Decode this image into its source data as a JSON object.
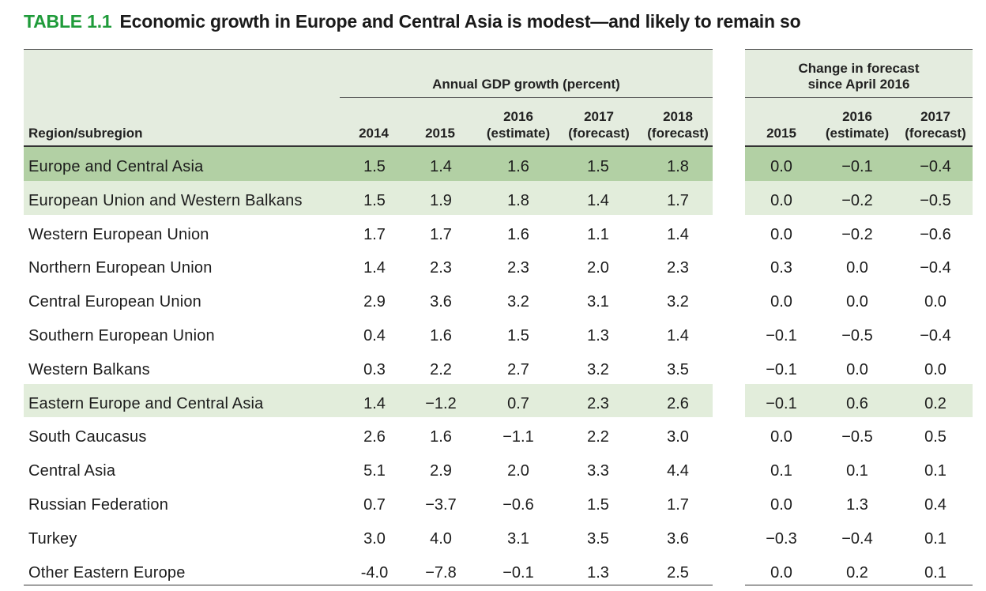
{
  "title": {
    "label": "TABLE 1.1",
    "text": "Economic growth in Europe and Central Asia is modest—and likely to remain so"
  },
  "header": {
    "region_label": "Region/subregion",
    "annual_group": "Annual GDP growth (percent)",
    "change_group_line1": "Change in forecast",
    "change_group_line2": "since April 2016",
    "annual_columns": [
      {
        "line1": "",
        "line2": "2014"
      },
      {
        "line1": "",
        "line2": "2015"
      },
      {
        "line1": "2016",
        "line2": "(estimate)"
      },
      {
        "line1": "2017",
        "line2": "(forecast)"
      },
      {
        "line1": "2018",
        "line2": "(forecast)"
      }
    ],
    "change_columns": [
      {
        "line1": "",
        "line2": "2015"
      },
      {
        "line1": "2016",
        "line2": "(estimate)"
      },
      {
        "line1": "2017",
        "line2": "(forecast)"
      }
    ]
  },
  "rows": [
    {
      "name": "Europe and Central Asia",
      "highlight": "dark",
      "values": [
        "1.5",
        "1.4",
        "1.6",
        "1.5",
        "1.8"
      ],
      "changes": [
        "0.0",
        "−0.1",
        "−0.4"
      ]
    },
    {
      "name": "European Union and Western Balkans",
      "highlight": "light",
      "values": [
        "1.5",
        "1.9",
        "1.8",
        "1.4",
        "1.7"
      ],
      "changes": [
        "0.0",
        "−0.2",
        "−0.5"
      ]
    },
    {
      "name": "Western European Union",
      "highlight": "none",
      "values": [
        "1.7",
        "1.7",
        "1.6",
        "1.1",
        "1.4"
      ],
      "changes": [
        "0.0",
        "−0.2",
        "−0.6"
      ]
    },
    {
      "name": "Northern European Union",
      "highlight": "none",
      "values": [
        "1.4",
        "2.3",
        "2.3",
        "2.0",
        "2.3"
      ],
      "changes": [
        "0.3",
        "0.0",
        "−0.4"
      ]
    },
    {
      "name": "Central European Union",
      "highlight": "none",
      "values": [
        "2.9",
        "3.6",
        "3.2",
        "3.1",
        "3.2"
      ],
      "changes": [
        "0.0",
        "0.0",
        "0.0"
      ]
    },
    {
      "name": "Southern European Union",
      "highlight": "none",
      "values": [
        "0.4",
        "1.6",
        "1.5",
        "1.3",
        "1.4"
      ],
      "changes": [
        "−0.1",
        "−0.5",
        "−0.4"
      ]
    },
    {
      "name": "Western Balkans",
      "highlight": "none",
      "values": [
        "0.3",
        "2.2",
        "2.7",
        "3.2",
        "3.5"
      ],
      "changes": [
        "−0.1",
        "0.0",
        "0.0"
      ]
    },
    {
      "name": "Eastern Europe and Central Asia",
      "highlight": "light",
      "values": [
        "1.4",
        "−1.2",
        "0.7",
        "2.3",
        "2.6"
      ],
      "changes": [
        "−0.1",
        "0.6",
        "0.2"
      ]
    },
    {
      "name": "South Caucasus",
      "highlight": "none",
      "values": [
        "2.6",
        "1.6",
        "−1.1",
        "2.2",
        "3.0"
      ],
      "changes": [
        "0.0",
        "−0.5",
        "0.5"
      ]
    },
    {
      "name": "Central Asia",
      "highlight": "none",
      "values": [
        "5.1",
        "2.9",
        "2.0",
        "3.3",
        "4.4"
      ],
      "changes": [
        "0.1",
        "0.1",
        "0.1"
      ]
    },
    {
      "name": "Russian Federation",
      "highlight": "none",
      "values": [
        "0.7",
        "−3.7",
        "−0.6",
        "1.5",
        "1.7"
      ],
      "changes": [
        "0.0",
        "1.3",
        "0.4"
      ]
    },
    {
      "name": "Turkey",
      "highlight": "none",
      "values": [
        "3.0",
        "4.0",
        "3.1",
        "3.5",
        "3.6"
      ],
      "changes": [
        "−0.3",
        "−0.4",
        "0.1"
      ]
    },
    {
      "name": "Other Eastern Europe",
      "highlight": "none",
      "values": [
        "-4.0",
        "−7.8",
        "−0.1",
        "1.3",
        "2.5"
      ],
      "changes": [
        "0.0",
        "0.2",
        "0.1"
      ]
    }
  ]
}
